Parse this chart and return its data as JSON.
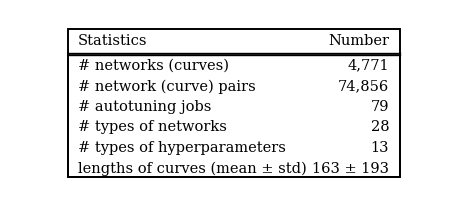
{
  "header_left": "Statistics",
  "header_right": "Number",
  "rows": [
    [
      "# networks (curves)",
      "4,771"
    ],
    [
      "# network (curve) pairs",
      "74,856"
    ],
    [
      "# autotuning jobs",
      "79"
    ],
    [
      "# types of networks",
      "28"
    ],
    [
      "# types of hyperparameters",
      "13"
    ],
    [
      "lengths of curves (mean ± std)",
      "163 ± 193"
    ]
  ],
  "bg_color": "#ffffff",
  "text_color": "#000000",
  "header_fontsize": 10.5,
  "row_fontsize": 10.5,
  "fig_width": 4.56,
  "fig_height": 2.04
}
